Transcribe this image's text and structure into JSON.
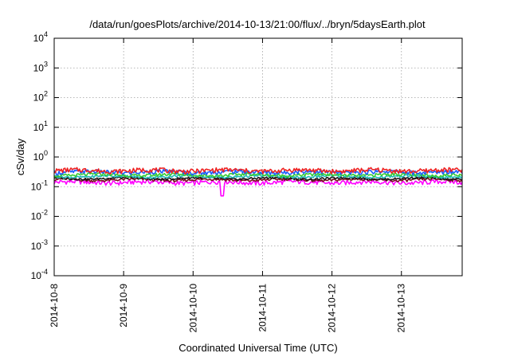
{
  "chart_data": {
    "type": "line",
    "title": "/data/run/goesPlots/archive/2014-10-13/21:00/flux/../bryn/5daysEarth.plot",
    "xlabel": "Coordinated Universal Time (UTC)",
    "ylabel": "cSv/day",
    "x_range": [
      "2014-10-08",
      "2014-10-13T21:00"
    ],
    "ylim": [
      0.0001,
      10000
    ],
    "y_scale": "log",
    "grid": true,
    "x_ticks": [
      "2014-10-8",
      "2014-10-9",
      "2014-10-10",
      "2014-10-11",
      "2014-10-12",
      "2014-10-13"
    ],
    "y_ticks": [
      {
        "base": "10",
        "exp": "-4",
        "value": 0.0001
      },
      {
        "base": "10",
        "exp": "-3",
        "value": 0.001
      },
      {
        "base": "10",
        "exp": "-2",
        "value": 0.01
      },
      {
        "base": "10",
        "exp": "-1",
        "value": 0.1
      },
      {
        "base": "10",
        "exp": "0",
        "value": 1
      },
      {
        "base": "10",
        "exp": "1",
        "value": 10
      },
      {
        "base": "10",
        "exp": "2",
        "value": 100
      },
      {
        "base": "10",
        "exp": "3",
        "value": 1000
      },
      {
        "base": "10",
        "exp": "4",
        "value": 10000
      }
    ],
    "series": [
      {
        "color": "#ff00ff",
        "mean": 0.14,
        "variation": 0.18
      },
      {
        "color": "#7a1020",
        "mean": 0.17,
        "variation": 0.1
      },
      {
        "color": "#1a1a1a",
        "mean": 0.19,
        "variation": 0.08
      },
      {
        "color": "#22b8b8",
        "mean": 0.22,
        "variation": 0.1
      },
      {
        "color": "#33cc33",
        "mean": 0.25,
        "variation": 0.12
      },
      {
        "color": "#1a5cff",
        "mean": 0.31,
        "variation": 0.16
      },
      {
        "color": "#ee2222",
        "mean": 0.35,
        "variation": 0.18
      }
    ]
  }
}
